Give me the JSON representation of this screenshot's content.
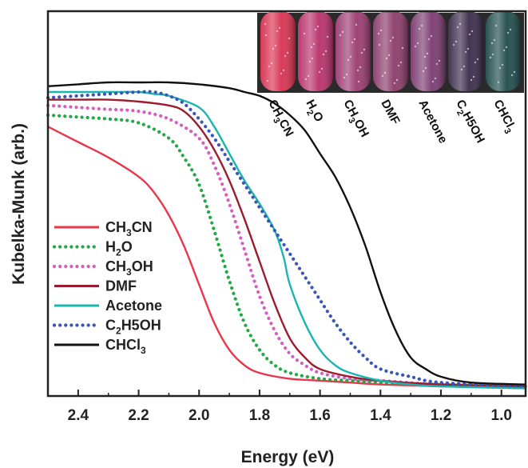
{
  "chart_data": {
    "type": "line",
    "xlabel": "Energy (eV)",
    "ylabel": "Kubelka-Munk (arb.)",
    "xlim": [
      2.5,
      0.92
    ],
    "ylim": [
      0,
      1.0
    ],
    "x_reversed": true,
    "xticks": [
      "2.4",
      "2.2",
      "2.0",
      "1.8",
      "1.6",
      "1.4",
      "1.2",
      "1.0"
    ],
    "yticks": [],
    "grid": false,
    "legend_position": "bottom-left",
    "series": [
      {
        "name": "CH3CN",
        "name_main": "CH",
        "name_sub": "3",
        "name_tail": "CN",
        "color": "#e8374a",
        "style": "solid",
        "points": [
          [
            2.5,
            0.7
          ],
          [
            2.4,
            0.66
          ],
          [
            2.3,
            0.62
          ],
          [
            2.2,
            0.57
          ],
          [
            2.15,
            0.53
          ],
          [
            2.1,
            0.47
          ],
          [
            2.05,
            0.39
          ],
          [
            2.0,
            0.29
          ],
          [
            1.95,
            0.19
          ],
          [
            1.9,
            0.12
          ],
          [
            1.85,
            0.08
          ],
          [
            1.8,
            0.06
          ],
          [
            1.7,
            0.045
          ],
          [
            1.6,
            0.04
          ],
          [
            1.5,
            0.035
          ],
          [
            1.4,
            0.03
          ],
          [
            1.2,
            0.025
          ],
          [
            0.92,
            0.02
          ]
        ]
      },
      {
        "name": "H2O",
        "name_main": "H",
        "name_sub": "2",
        "name_tail": "O",
        "color": "#22a845",
        "style": "dotted",
        "points": [
          [
            2.5,
            0.73
          ],
          [
            2.4,
            0.725
          ],
          [
            2.3,
            0.72
          ],
          [
            2.2,
            0.71
          ],
          [
            2.1,
            0.67
          ],
          [
            2.05,
            0.62
          ],
          [
            2.0,
            0.55
          ],
          [
            1.95,
            0.43
          ],
          [
            1.9,
            0.3
          ],
          [
            1.85,
            0.19
          ],
          [
            1.8,
            0.12
          ],
          [
            1.75,
            0.08
          ],
          [
            1.7,
            0.06
          ],
          [
            1.6,
            0.045
          ],
          [
            1.5,
            0.04
          ],
          [
            1.4,
            0.035
          ],
          [
            1.2,
            0.03
          ],
          [
            0.92,
            0.025
          ]
        ]
      },
      {
        "name": "CH3OH",
        "name_main": "CH",
        "name_sub": "3",
        "name_tail": "OH",
        "color": "#d45fc0",
        "style": "dotted",
        "points": [
          [
            2.5,
            0.755
          ],
          [
            2.4,
            0.75
          ],
          [
            2.3,
            0.745
          ],
          [
            2.2,
            0.74
          ],
          [
            2.1,
            0.72
          ],
          [
            2.0,
            0.67
          ],
          [
            1.95,
            0.6
          ],
          [
            1.9,
            0.5
          ],
          [
            1.85,
            0.38
          ],
          [
            1.8,
            0.26
          ],
          [
            1.75,
            0.17
          ],
          [
            1.7,
            0.11
          ],
          [
            1.65,
            0.08
          ],
          [
            1.6,
            0.06
          ],
          [
            1.5,
            0.045
          ],
          [
            1.4,
            0.04
          ],
          [
            1.2,
            0.03
          ],
          [
            0.92,
            0.025
          ]
        ]
      },
      {
        "name": "DMF",
        "name_main": "DMF",
        "name_sub": "",
        "name_tail": "",
        "color": "#9b1c2e",
        "style": "solid",
        "points": [
          [
            2.5,
            0.77
          ],
          [
            2.4,
            0.77
          ],
          [
            2.3,
            0.77
          ],
          [
            2.2,
            0.765
          ],
          [
            2.1,
            0.755
          ],
          [
            2.05,
            0.74
          ],
          [
            2.0,
            0.7
          ],
          [
            1.95,
            0.64
          ],
          [
            1.9,
            0.56
          ],
          [
            1.85,
            0.46
          ],
          [
            1.8,
            0.35
          ],
          [
            1.75,
            0.24
          ],
          [
            1.7,
            0.15
          ],
          [
            1.65,
            0.1
          ],
          [
            1.6,
            0.07
          ],
          [
            1.5,
            0.05
          ],
          [
            1.4,
            0.04
          ],
          [
            1.2,
            0.03
          ],
          [
            0.92,
            0.025
          ]
        ]
      },
      {
        "name": "Acetone",
        "name_main": "Acetone",
        "name_sub": "",
        "name_tail": "",
        "color": "#1ab5b0",
        "style": "solid",
        "points": [
          [
            2.5,
            0.79
          ],
          [
            2.4,
            0.79
          ],
          [
            2.3,
            0.79
          ],
          [
            2.2,
            0.79
          ],
          [
            2.15,
            0.785
          ],
          [
            2.1,
            0.78
          ],
          [
            2.0,
            0.75
          ],
          [
            1.95,
            0.7
          ],
          [
            1.9,
            0.63
          ],
          [
            1.85,
            0.56
          ],
          [
            1.8,
            0.5
          ],
          [
            1.75,
            0.43
          ],
          [
            1.72,
            0.36
          ],
          [
            1.7,
            0.29
          ],
          [
            1.65,
            0.19
          ],
          [
            1.6,
            0.12
          ],
          [
            1.55,
            0.08
          ],
          [
            1.5,
            0.06
          ],
          [
            1.4,
            0.04
          ],
          [
            1.3,
            0.03
          ],
          [
            1.2,
            0.025
          ],
          [
            0.92,
            0.02
          ]
        ]
      },
      {
        "name": "C2H5OH",
        "name_main": "C",
        "name_sub": "2",
        "name_tail": "H5OH",
        "color": "#3a55b5",
        "style": "dotted",
        "points": [
          [
            2.5,
            0.775
          ],
          [
            2.4,
            0.78
          ],
          [
            2.3,
            0.785
          ],
          [
            2.2,
            0.79
          ],
          [
            2.15,
            0.79
          ],
          [
            2.1,
            0.78
          ],
          [
            2.05,
            0.76
          ],
          [
            2.0,
            0.72
          ],
          [
            1.95,
            0.67
          ],
          [
            1.9,
            0.61
          ],
          [
            1.85,
            0.55
          ],
          [
            1.8,
            0.49
          ],
          [
            1.75,
            0.43
          ],
          [
            1.7,
            0.37
          ],
          [
            1.65,
            0.31
          ],
          [
            1.6,
            0.25
          ],
          [
            1.55,
            0.19
          ],
          [
            1.5,
            0.14
          ],
          [
            1.45,
            0.1
          ],
          [
            1.4,
            0.07
          ],
          [
            1.3,
            0.05
          ],
          [
            1.2,
            0.035
          ],
          [
            0.92,
            0.025
          ]
        ]
      },
      {
        "name": "CHCl3",
        "name_main": "CHCl",
        "name_sub": "3",
        "name_tail": "",
        "color": "#111111",
        "style": "solid",
        "points": [
          [
            2.5,
            0.805
          ],
          [
            2.4,
            0.81
          ],
          [
            2.3,
            0.815
          ],
          [
            2.2,
            0.815
          ],
          [
            2.1,
            0.815
          ],
          [
            2.0,
            0.81
          ],
          [
            1.9,
            0.8
          ],
          [
            1.85,
            0.79
          ],
          [
            1.8,
            0.78
          ],
          [
            1.75,
            0.76
          ],
          [
            1.7,
            0.73
          ],
          [
            1.65,
            0.69
          ],
          [
            1.6,
            0.63
          ],
          [
            1.55,
            0.57
          ],
          [
            1.5,
            0.49
          ],
          [
            1.45,
            0.39
          ],
          [
            1.4,
            0.27
          ],
          [
            1.35,
            0.17
          ],
          [
            1.3,
            0.1
          ],
          [
            1.25,
            0.07
          ],
          [
            1.2,
            0.05
          ],
          [
            1.1,
            0.035
          ],
          [
            0.92,
            0.03
          ]
        ]
      }
    ],
    "inset": {
      "vials": [
        {
          "main": "CH",
          "sub": "3",
          "tail": "CN",
          "color": "#d8304e"
        },
        {
          "main": "H",
          "sub": "2",
          "tail": "O",
          "color": "#b8306a"
        },
        {
          "main": "CH",
          "sub": "3",
          "tail": "OH",
          "color": "#9a3a70"
        },
        {
          "main": "DMF",
          "sub": "",
          "tail": "",
          "color": "#8a3a6a"
        },
        {
          "main": "Acetone",
          "sub": "",
          "tail": "",
          "color": "#7a3a70"
        },
        {
          "main": "C",
          "sub": "2",
          "tail": "H5OH",
          "color": "#3a2a4a"
        },
        {
          "main": "CHCl",
          "sub": "3",
          "tail": "",
          "color": "#1e4a4a"
        }
      ]
    }
  }
}
